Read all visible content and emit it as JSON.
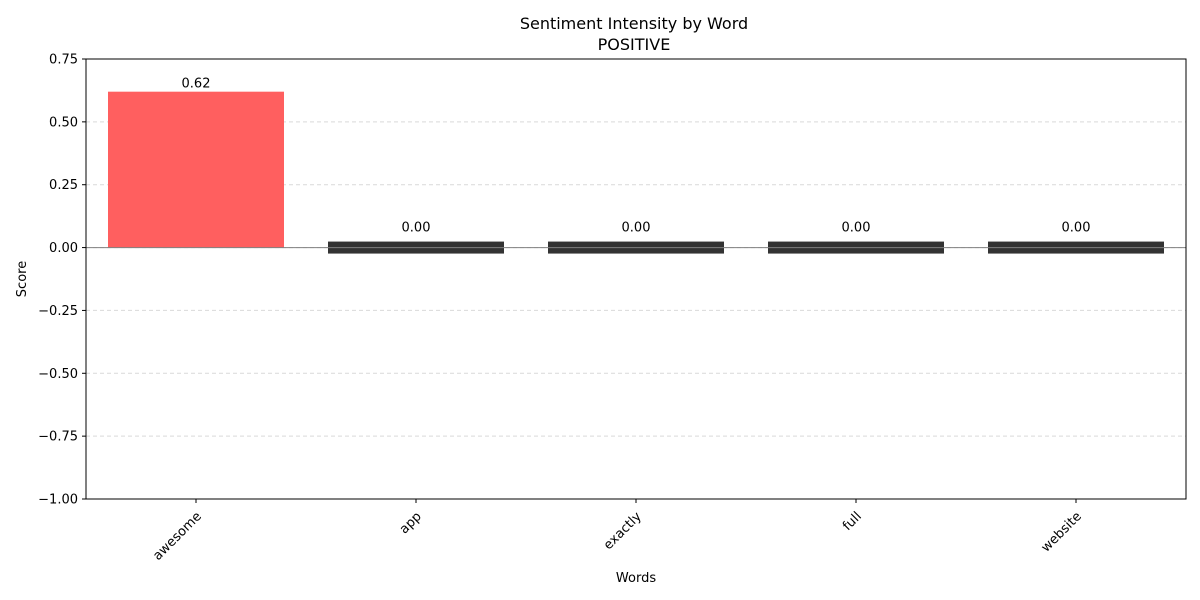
{
  "chart_data": {
    "type": "bar",
    "title": "Sentiment Intensity by Word",
    "subtitle": "POSITIVE",
    "xlabel": "Words",
    "ylabel": "Score",
    "categories": [
      "awesome",
      "app",
      "exactly",
      "full",
      "website"
    ],
    "values": [
      0.62,
      0.0,
      0.0,
      0.0,
      0.0
    ],
    "data_labels": [
      "0.62",
      "0.00",
      "0.00",
      "0.00",
      "0.00"
    ],
    "ylim": [
      -1.0,
      0.75
    ],
    "yticks": [
      -1.0,
      -0.75,
      -0.5,
      -0.25,
      0.0,
      0.25,
      0.5,
      0.75
    ],
    "ytick_labels": [
      "−1.00",
      "−0.75",
      "−0.50",
      "−0.25",
      "0.00",
      "0.25",
      "0.50",
      "0.75"
    ],
    "grid": "y-dashed",
    "bar_colors": [
      "#ff5f5f",
      "#333333",
      "#333333",
      "#333333",
      "#333333"
    ],
    "zero_line_color": "#808080"
  }
}
